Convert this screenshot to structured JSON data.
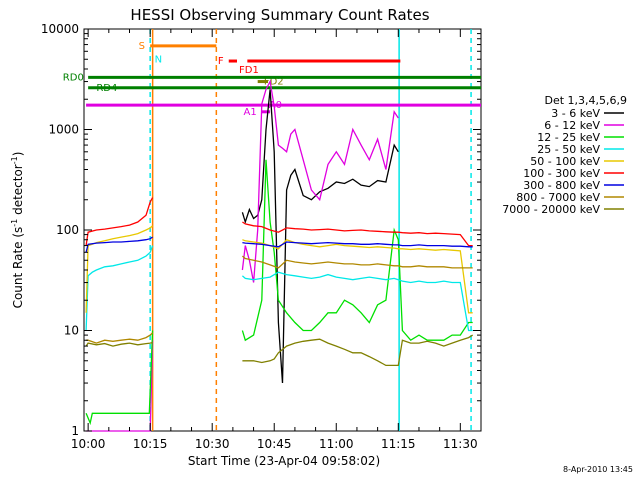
{
  "chart_data": {
    "type": "line",
    "title": "HESSI Observing Summary Count Rates",
    "xlabel": "Start Time (23-Apr-04 09:58:02)",
    "ylabel_main": "Count Rate (s",
    "ylabel_sup1": "-1",
    "ylabel_mid": " detector",
    "ylabel_sup2": "-1",
    "ylabel_end": ")",
    "yscale": "log",
    "ylim": [
      1,
      10000
    ],
    "xlim_minutes": [
      -1,
      95
    ],
    "x_ticks": [
      {
        "label": "10:00",
        "min": 0
      },
      {
        "label": "10:15",
        "min": 15
      },
      {
        "label": "10:30",
        "min": 30
      },
      {
        "label": "10:45",
        "min": 45
      },
      {
        "label": "11:00",
        "min": 60
      },
      {
        "label": "11:15",
        "min": 75
      },
      {
        "label": "11:30",
        "min": 90
      }
    ],
    "y_ticks": [
      {
        "label": "1",
        "value": 1
      },
      {
        "label": "10",
        "value": 10
      },
      {
        "label": "100",
        "value": 100
      },
      {
        "label": "1000",
        "value": 1000
      },
      {
        "label": "10000",
        "value": 10000
      }
    ],
    "legend_title": "Det 1,3,4,5,6,9",
    "legend_position": "right",
    "series": [
      {
        "name": "3 - 6 keV",
        "color": "#000000",
        "segments": [
          {
            "x": [
              37.3,
              38,
              39,
              40,
              41,
              42,
              43,
              44,
              45,
              46,
              47,
              48,
              49,
              50,
              52,
              54,
              56,
              58,
              60,
              62,
              64,
              66,
              68,
              70,
              72,
              74,
              75
            ],
            "y": [
              150,
              120,
              160,
              130,
              140,
              200,
              1000,
              2500,
              600,
              12,
              3,
              250,
              350,
              400,
              220,
              200,
              240,
              260,
              300,
              290,
              320,
              280,
              270,
              310,
              300,
              700,
              600
            ]
          }
        ]
      },
      {
        "name": "6 - 12 keV",
        "color": "#e000e0",
        "segments": [
          {
            "x": [
              -0.5,
              5,
              10,
              14,
              15,
              15.6
            ],
            "y": [
              1,
              1,
              1,
              1,
              1,
              8
            ]
          },
          {
            "x": [
              37.3,
              38,
              39,
              40,
              41,
              42,
              43,
              44,
              45,
              46,
              47,
              48,
              49,
              50,
              52,
              54,
              56,
              58,
              60,
              62,
              64,
              66,
              68,
              70,
              72,
              74,
              75
            ],
            "y": [
              40,
              70,
              50,
              30,
              100,
              1800,
              2500,
              3000,
              1700,
              700,
              650,
              600,
              900,
              1000,
              500,
              250,
              200,
              450,
              600,
              450,
              1000,
              700,
              500,
              800,
              400,
              1500,
              1300
            ]
          }
        ]
      },
      {
        "name": "12 - 25 keV",
        "color": "#00e000",
        "segments": [
          {
            "x": [
              -0.5,
              0.5,
              1,
              5,
              10,
              13,
              14.8,
              15.6
            ],
            "y": [
              1.5,
              1.2,
              1.5,
              1.5,
              1.5,
              1.5,
              1.5,
              10
            ]
          },
          {
            "x": [
              37.3,
              38,
              40,
              42,
              43,
              44,
              45,
              46,
              48,
              50,
              52,
              54,
              56,
              58,
              60,
              62,
              64,
              66,
              68,
              70,
              72,
              74,
              75,
              76,
              78,
              80,
              82,
              84,
              86,
              88,
              90,
              92,
              93
            ],
            "y": [
              10,
              8,
              9,
              20,
              500,
              120,
              60,
              20,
              15,
              12,
              10,
              10,
              12,
              15,
              15,
              20,
              18,
              15,
              12,
              18,
              20,
              100,
              80,
              10,
              8,
              9,
              8,
              8,
              8,
              9,
              9,
              12,
              12
            ]
          }
        ]
      },
      {
        "name": "25 - 50 keV",
        "color": "#00e8e8",
        "segments": [
          {
            "x": [
              -0.5,
              0,
              1,
              2,
              4,
              6,
              8,
              10,
              12,
              14,
              15,
              15.6
            ],
            "y": [
              10,
              35,
              38,
              40,
              43,
              44,
              46,
              48,
              50,
              55,
              60,
              70
            ]
          },
          {
            "x": [
              37.3,
              38,
              40,
              42,
              44,
              46,
              48,
              50,
              52,
              54,
              56,
              58,
              60,
              62,
              64,
              66,
              68,
              70,
              72,
              74,
              75,
              76,
              78,
              80,
              82,
              84,
              86,
              88,
              90,
              92,
              93
            ],
            "y": [
              35,
              33,
              32,
              33,
              34,
              38,
              36,
              35,
              34,
              33,
              34,
              36,
              34,
              33,
              32,
              33,
              34,
              33,
              32,
              33,
              32,
              31,
              30,
              31,
              30,
              30,
              31,
              30,
              30,
              10,
              10
            ]
          }
        ]
      },
      {
        "name": "50 - 100 keV",
        "color": "#e8c800",
        "segments": [
          {
            "x": [
              -0.5,
              0,
              1,
              2,
              4,
              6,
              8,
              10,
              12,
              14,
              15,
              15.6
            ],
            "y": [
              15,
              70,
              72,
              75,
              78,
              82,
              85,
              88,
              92,
              100,
              105,
              110
            ]
          },
          {
            "x": [
              37.3,
              38,
              40,
              42,
              44,
              46,
              48,
              50,
              52,
              54,
              56,
              58,
              60,
              62,
              64,
              66,
              68,
              70,
              72,
              74,
              75,
              76,
              78,
              80,
              82,
              84,
              86,
              88,
              90,
              92,
              93
            ],
            "y": [
              80,
              78,
              76,
              74,
              70,
              65,
              80,
              75,
              72,
              70,
              68,
              70,
              72,
              70,
              69,
              68,
              67,
              68,
              67,
              66,
              65,
              65,
              64,
              65,
              64,
              63,
              64,
              63,
              62,
              15,
              15
            ]
          }
        ]
      },
      {
        "name": "100 - 300 keV",
        "color": "#ff0000",
        "segments": [
          {
            "x": [
              -0.5,
              0,
              2,
              4,
              6,
              8,
              10,
              12,
              14,
              15,
              15.6
            ],
            "y": [
              70,
              95,
              100,
              102,
              105,
              108,
              112,
              120,
              140,
              190,
              210
            ]
          },
          {
            "x": [
              37.3,
              38,
              40,
              42,
              44,
              46,
              48,
              50,
              52,
              54,
              56,
              58,
              60,
              62,
              64,
              66,
              68,
              70,
              72,
              74,
              75,
              76,
              78,
              80,
              82,
              84,
              86,
              88,
              90,
              92,
              93
            ],
            "y": [
              120,
              115,
              110,
              108,
              100,
              95,
              105,
              103,
              102,
              100,
              101,
              102,
              100,
              98,
              99,
              100,
              98,
              97,
              96,
              95,
              95,
              94,
              93,
              94,
              92,
              93,
              92,
              91,
              90,
              70,
              70
            ]
          }
        ]
      },
      {
        "name": "300 - 800 keV",
        "color": "#0000e0",
        "segments": [
          {
            "x": [
              -0.5,
              0,
              2,
              4,
              6,
              8,
              10,
              12,
              14,
              15,
              15.6
            ],
            "y": [
              60,
              72,
              74,
              75,
              76,
              76,
              77,
              78,
              80,
              82,
              85
            ]
          },
          {
            "x": [
              37.3,
              38,
              40,
              42,
              44,
              46,
              48,
              50,
              52,
              54,
              56,
              58,
              60,
              62,
              64,
              66,
              68,
              70,
              72,
              74,
              75,
              76,
              78,
              80,
              82,
              84,
              86,
              88,
              90,
              92,
              93
            ],
            "y": [
              75,
              74,
              73,
              72,
              70,
              68,
              76,
              75,
              74,
              73,
              74,
              75,
              74,
              73,
              73,
              72,
              72,
              73,
              72,
              71,
              71,
              70,
              70,
              71,
              70,
              70,
              70,
              69,
              69,
              68,
              68
            ]
          }
        ]
      },
      {
        "name": "800 - 7000 keV",
        "color": "#b08800",
        "segments": [
          {
            "x": [
              -0.5,
              0,
              2,
              4,
              6,
              8,
              10,
              12,
              14,
              15,
              15.6
            ],
            "y": [
              8,
              8,
              7.5,
              8,
              7.8,
              8,
              8.2,
              8,
              8.5,
              9,
              9.5
            ]
          },
          {
            "x": [
              37.3,
              38,
              40,
              42,
              44,
              46,
              48,
              50,
              52,
              54,
              56,
              58,
              60,
              62,
              64,
              66,
              68,
              70,
              72,
              74,
              75,
              76,
              78,
              80,
              82,
              84,
              86,
              88,
              90,
              92,
              93
            ],
            "y": [
              55,
              52,
              50,
              48,
              45,
              42,
              50,
              48,
              47,
              46,
              47,
              48,
              47,
              46,
              46,
              45,
              45,
              46,
              45,
              44,
              44,
              43,
              43,
              44,
              43,
              43,
              43,
              42,
              42,
              42,
              42
            ]
          }
        ]
      },
      {
        "name": "7000 - 20000 keV",
        "color": "#808000",
        "segments": [
          {
            "x": [
              -0.5,
              0,
              2,
              4,
              6,
              8,
              10,
              12,
              14,
              15,
              15.6
            ],
            "y": [
              7,
              7.5,
              7.2,
              7.4,
              7,
              7.3,
              7.5,
              7.2,
              7.4,
              7.5,
              7.6
            ]
          },
          {
            "x": [
              37.3,
              38,
              40,
              42,
              44,
              45,
              46,
              48,
              50,
              52,
              54,
              56,
              58,
              60,
              62,
              64,
              66,
              68,
              70,
              72,
              74,
              75,
              76,
              78,
              80,
              82,
              84,
              86,
              88,
              90,
              92,
              93
            ],
            "y": [
              5,
              5,
              5,
              4.8,
              5,
              5.2,
              6,
              7,
              7.5,
              7.8,
              8,
              8.2,
              7.5,
              7,
              6.5,
              6,
              6,
              5.5,
              5,
              4.5,
              4.5,
              4.5,
              8,
              7.5,
              7.5,
              7.8,
              7.5,
              7,
              7.5,
              8,
              8.5,
              9
            ]
          }
        ]
      }
    ],
    "flags": [
      {
        "label": "S",
        "color": "#ff8000",
        "label_at": 14.0,
        "x0": 15.0,
        "x1": 31.0,
        "y": 6800,
        "label_side": "left"
      },
      {
        "label": "N",
        "color": "#00e8e8",
        "label_at": 15.6,
        "x0": 15.6,
        "x1": 15.6,
        "y": 5000,
        "label_side": "right"
      },
      {
        "label": "F",
        "color": "#ff0000",
        "label_at": 33.0,
        "x0": 34.0,
        "x1": 75.5,
        "y": 4800,
        "label_side": "left",
        "gap": [
          36,
          38.5
        ]
      },
      {
        "label": "FD1",
        "color": "#ff0000",
        "label_at": 36.0,
        "x0": 36.0,
        "x1": 36.0,
        "y": 3900,
        "label_side": "right"
      },
      {
        "label": "FD2",
        "color": "#808000",
        "label_at": 42.0,
        "x0": 41.0,
        "x1": 43.5,
        "y": 3000,
        "label_side": "right"
      },
      {
        "label": "RD0",
        "color": "#008000",
        "label_at": -0.8,
        "x0": 0,
        "x1": 95,
        "y": 3300,
        "label_side": "left"
      },
      {
        "label": "RD4",
        "color": "#008000",
        "label_at": 1.5,
        "x0": 0,
        "x1": 95,
        "y": 2600,
        "label_side": "right"
      },
      {
        "label": "A1",
        "color": "#e000e0",
        "label_at": 41.0,
        "x0": 42.0,
        "x1": 44.0,
        "y": 1500,
        "label_side": "left"
      },
      {
        "label": "A0",
        "color": "#e000e0",
        "label_at": 43.2,
        "x0": -0.5,
        "x1": 95,
        "y": 1750,
        "label_side": "right"
      }
    ],
    "vertical_lines": [
      {
        "x": 15.0,
        "color": "#00e8e8",
        "style": "dashed"
      },
      {
        "x": 15.6,
        "color": "#ff8000",
        "style": "solid"
      },
      {
        "x": 31.0,
        "color": "#ff8000",
        "style": "dashed"
      },
      {
        "x": 75.2,
        "color": "#00e8e8",
        "style": "solid"
      },
      {
        "x": 92.6,
        "color": "#00e8e8",
        "style": "dashed"
      }
    ],
    "footer_date": "8-Apr-2010 13:45"
  }
}
